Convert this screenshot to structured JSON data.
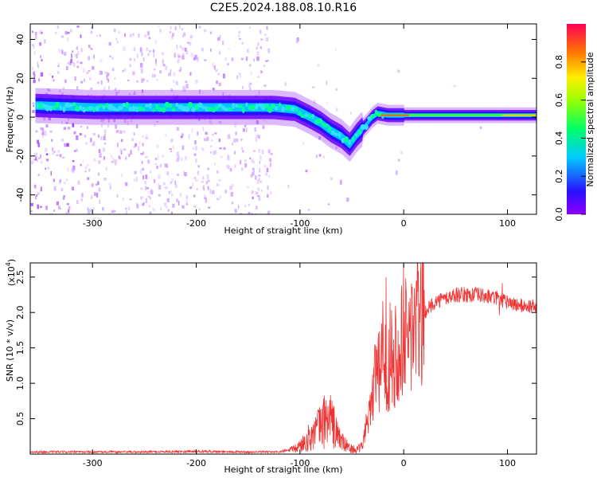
{
  "title": "C2E5.2024.188.08.10.R16",
  "chart_data": [
    {
      "type": "heatmap",
      "name": "spectrogram",
      "xlabel": "Height of straight line (km)",
      "ylabel": "Frequency (Hz)",
      "xlim": [
        -360,
        128
      ],
      "ylim": [
        -50,
        48
      ],
      "xticks": [
        -300,
        -200,
        -100,
        0,
        100
      ],
      "yticks": [
        -40,
        -20,
        0,
        20,
        40
      ],
      "xtick_labels": [
        "-300",
        "-200",
        "-100",
        "0",
        "100"
      ],
      "ytick_labels": [
        "-40",
        "-20",
        "0",
        "20",
        "40"
      ],
      "colorbar": {
        "label": "Normalized spectral amplitude",
        "range": [
          0,
          1
        ],
        "ticks": [
          0.0,
          0.2,
          0.4,
          0.6,
          0.8
        ],
        "tick_labels": [
          "0.0",
          "0.2",
          "0.4",
          "0.6",
          "0.8"
        ]
      },
      "ridge": {
        "x": [
          -355,
          -300,
          -250,
          -200,
          -150,
          -125,
          -105,
          -90,
          -80,
          -70,
          -60,
          -52,
          -45,
          -38,
          -30,
          -25,
          -15,
          0,
          50,
          100,
          128
        ],
        "y": [
          6,
          5,
          5,
          5,
          5,
          5,
          4,
          0,
          -3,
          -7,
          -10,
          -14,
          -9,
          -5,
          0,
          2,
          1,
          1,
          1,
          1,
          1
        ]
      }
    },
    {
      "type": "line",
      "name": "snr",
      "xlabel": "Height of straight line (km)",
      "ylabel": "SNR (10 * v/v)",
      "scale_label": "(x10",
      "scale_exp": "4",
      "scale_close": ")",
      "xlim": [
        -360,
        128
      ],
      "ylim": [
        0,
        27000
      ],
      "xticks": [
        -300,
        -200,
        -100,
        0,
        100
      ],
      "yticks": [
        5000,
        10000,
        15000,
        20000,
        25000
      ],
      "xtick_labels": [
        "-300",
        "-200",
        "-100",
        "0",
        "100"
      ],
      "ytick_labels": [
        "0.5",
        "1.0",
        "1.5",
        "2.0",
        "2.5"
      ],
      "color": "#ee3333",
      "envelope": {
        "x": [
          -360,
          -250,
          -200,
          -150,
          -120,
          -105,
          -100,
          -90,
          -80,
          -72,
          -65,
          -58,
          -52,
          -45,
          -40,
          -35,
          -30,
          -25,
          -20,
          -15,
          -10,
          -5,
          0,
          10,
          20,
          30,
          50,
          70,
          90,
          100,
          110,
          128
        ],
        "y": [
          300,
          300,
          400,
          300,
          300,
          700,
          1200,
          2500,
          4000,
          5500,
          3000,
          1500,
          800,
          600,
          1000,
          5000,
          9000,
          11000,
          12000,
          13000,
          14000,
          15000,
          16000,
          18000,
          20000,
          21500,
          22500,
          22500,
          22000,
          21500,
          21000,
          20800
        ]
      }
    }
  ]
}
